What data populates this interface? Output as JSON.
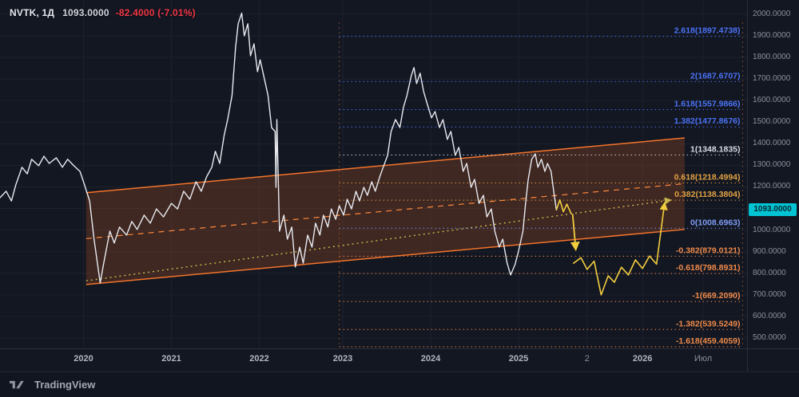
{
  "legend": {
    "symbol_text": "NVTK, 1Д",
    "price": "1093.0000",
    "change": "-82.4000 (-7.01%)"
  },
  "price_badge": {
    "text": "1093.0000",
    "price": 1093,
    "bg": "#00c3d4"
  },
  "footer": {
    "brand": "TradingView"
  },
  "colors": {
    "background": "#131722",
    "grid": "#1b212d",
    "axis_text": "#8b8f9c",
    "price_line": "#e8eaef",
    "channel_stroke": "#f4742a",
    "channel_fill": "rgba(222,98,36,0.22)",
    "channel_median": "#ff8a3c",
    "trendline": "#c9b84c",
    "projection": "#f2ce3f",
    "fib_blue": "#4a72f5",
    "fib_white": "#d8dbe3",
    "fib_amber": "#e3a243",
    "fib_zero": "#7f9cf5",
    "fib_orange": "#ef8a4a",
    "change_red": "#f23645"
  },
  "chart_data": {
    "type": "line",
    "title": "NVTK daily chart with ascending channel and Fibonacci trend extension",
    "x_domain": [
      2019.05,
      2027.55
    ],
    "y_domain": [
      452,
      2066
    ],
    "grid": true,
    "x_ticks": [
      {
        "label": "2020",
        "t": 2020.0,
        "minor": false
      },
      {
        "label": "2021",
        "t": 2021.0,
        "minor": false
      },
      {
        "label": "2022",
        "t": 2022.0,
        "minor": false
      },
      {
        "label": "2023",
        "t": 2022.95,
        "minor": false
      },
      {
        "label": "2024",
        "t": 2023.95,
        "minor": false
      },
      {
        "label": "2025",
        "t": 2024.95,
        "minor": false
      },
      {
        "label": "2",
        "t": 2025.73,
        "minor": true
      },
      {
        "label": "2026",
        "t": 2026.36,
        "minor": false
      },
      {
        "label": "Июл",
        "t": 2027.05,
        "minor": true
      }
    ],
    "y_ticks": [
      2000,
      1900,
      1800,
      1700,
      1600,
      1500,
      1400,
      1300,
      1200,
      1100,
      1000,
      900,
      800,
      700,
      600,
      500
    ],
    "series": {
      "name": "NVTK close",
      "points": [
        [
          2019.05,
          1150
        ],
        [
          2019.12,
          1180
        ],
        [
          2019.18,
          1135
        ],
        [
          2019.23,
          1210
        ],
        [
          2019.3,
          1291
        ],
        [
          2019.36,
          1261
        ],
        [
          2019.41,
          1328
        ],
        [
          2019.49,
          1298
        ],
        [
          2019.55,
          1342
        ],
        [
          2019.61,
          1309
        ],
        [
          2019.69,
          1335
        ],
        [
          2019.76,
          1291
        ],
        [
          2019.82,
          1328
        ],
        [
          2019.89,
          1298
        ],
        [
          2019.96,
          1272
        ],
        [
          2020,
          1224
        ],
        [
          2020.07,
          1135
        ],
        [
          2020.12,
          958
        ],
        [
          2020.19,
          755
        ],
        [
          2020.23,
          847
        ],
        [
          2020.3,
          995
        ],
        [
          2020.35,
          940
        ],
        [
          2020.41,
          1014
        ],
        [
          2020.49,
          977
        ],
        [
          2020.55,
          1040
        ],
        [
          2020.61,
          1003
        ],
        [
          2020.69,
          1069
        ],
        [
          2020.76,
          1032
        ],
        [
          2020.83,
          1098
        ],
        [
          2020.91,
          1061
        ],
        [
          2021,
          1124
        ],
        [
          2021.07,
          1098
        ],
        [
          2021.14,
          1180
        ],
        [
          2021.21,
          1143
        ],
        [
          2021.28,
          1224
        ],
        [
          2021.34,
          1180
        ],
        [
          2021.4,
          1246
        ],
        [
          2021.46,
          1291
        ],
        [
          2021.5,
          1365
        ],
        [
          2021.55,
          1309
        ],
        [
          2021.6,
          1438
        ],
        [
          2021.64,
          1512
        ],
        [
          2021.69,
          1623
        ],
        [
          2021.73,
          1845
        ],
        [
          2021.76,
          1956
        ],
        [
          2021.8,
          2005
        ],
        [
          2021.83,
          1900
        ],
        [
          2021.87,
          1956
        ],
        [
          2021.9,
          1808
        ],
        [
          2021.94,
          1863
        ],
        [
          2021.98,
          1734
        ],
        [
          2022.01,
          1789
        ],
        [
          2022.05,
          1716
        ],
        [
          2022.1,
          1623
        ],
        [
          2022.14,
          1475
        ],
        [
          2022.18,
          1457
        ],
        [
          2022.19,
          1198
        ],
        [
          2022.2,
          1512
        ],
        [
          2022.23,
          995
        ],
        [
          2022.28,
          1069
        ],
        [
          2022.32,
          958
        ],
        [
          2022.37,
          1014
        ],
        [
          2022.41,
          829
        ],
        [
          2022.46,
          921
        ],
        [
          2022.5,
          847
        ],
        [
          2022.55,
          977
        ],
        [
          2022.6,
          921
        ],
        [
          2022.64,
          1032
        ],
        [
          2022.69,
          977
        ],
        [
          2022.73,
          1069
        ],
        [
          2022.78,
          1014
        ],
        [
          2022.82,
          1098
        ],
        [
          2022.87,
          1050
        ],
        [
          2022.91,
          1113
        ],
        [
          2022.96,
          1069
        ],
        [
          2023,
          1143
        ],
        [
          2023.05,
          1098
        ],
        [
          2023.1,
          1180
        ],
        [
          2023.14,
          1135
        ],
        [
          2023.19,
          1198
        ],
        [
          2023.23,
          1161
        ],
        [
          2023.28,
          1224
        ],
        [
          2023.32,
          1180
        ],
        [
          2023.37,
          1246
        ],
        [
          2023.41,
          1291
        ],
        [
          2023.46,
          1346
        ],
        [
          2023.5,
          1457
        ],
        [
          2023.55,
          1512
        ],
        [
          2023.6,
          1475
        ],
        [
          2023.64,
          1568
        ],
        [
          2023.68,
          1623
        ],
        [
          2023.73,
          1716
        ],
        [
          2023.76,
          1753
        ],
        [
          2023.79,
          1679
        ],
        [
          2023.83,
          1727
        ],
        [
          2023.87,
          1642
        ],
        [
          2023.91,
          1586
        ],
        [
          2023.96,
          1520
        ],
        [
          2024,
          1549
        ],
        [
          2024.05,
          1475
        ],
        [
          2024.09,
          1512
        ],
        [
          2024.14,
          1420
        ],
        [
          2024.18,
          1457
        ],
        [
          2024.23,
          1346
        ],
        [
          2024.27,
          1383
        ],
        [
          2024.32,
          1272
        ],
        [
          2024.36,
          1309
        ],
        [
          2024.41,
          1198
        ],
        [
          2024.45,
          1235
        ],
        [
          2024.5,
          1124
        ],
        [
          2024.55,
          1161
        ],
        [
          2024.59,
          1061
        ],
        [
          2024.64,
          1098
        ],
        [
          2024.68,
          995
        ],
        [
          2024.73,
          921
        ],
        [
          2024.77,
          958
        ],
        [
          2024.82,
          847
        ],
        [
          2024.86,
          792
        ],
        [
          2024.91,
          840
        ],
        [
          2024.95,
          903
        ],
        [
          2025,
          995
        ],
        [
          2025.03,
          1124
        ],
        [
          2025.06,
          1235
        ],
        [
          2025.1,
          1328
        ],
        [
          2025.14,
          1353
        ],
        [
          2025.17,
          1291
        ],
        [
          2025.21,
          1328
        ],
        [
          2025.25,
          1272
        ],
        [
          2025.28,
          1309
        ],
        [
          2025.32,
          1272
        ],
        [
          2025.35,
          1180
        ],
        [
          2025.38,
          1093
        ]
      ]
    },
    "channel": {
      "t0": 2020.03,
      "t1": 2026.84,
      "top": [
        1173,
        1427
      ],
      "bottom": [
        748,
        1003
      ]
    },
    "trendline": {
      "from": [
        2020.03,
        765
      ],
      "to": [
        2026.67,
        1138.38
      ]
    },
    "projection": {
      "lead": [
        [
          2025.38,
          1093
        ],
        [
          2025.42,
          1140
        ],
        [
          2025.46,
          1085
        ],
        [
          2025.5,
          1120
        ],
        [
          2025.55,
          1075
        ]
      ],
      "down_arrow": [
        [
          2025.565,
          1075
        ],
        [
          2025.6,
          915
        ]
      ],
      "zigzag": [
        [
          2025.57,
          845
        ],
        [
          2025.66,
          872
        ],
        [
          2025.73,
          818
        ],
        [
          2025.81,
          856
        ],
        [
          2025.89,
          700
        ],
        [
          2025.97,
          788
        ],
        [
          2026.04,
          758
        ],
        [
          2026.12,
          828
        ],
        [
          2026.2,
          792
        ],
        [
          2026.28,
          862
        ],
        [
          2026.36,
          822
        ],
        [
          2026.44,
          880
        ],
        [
          2026.52,
          842
        ],
        [
          2026.61,
          1120
        ]
      ]
    },
    "fib": {
      "t_start": 2022.91,
      "t_end": 2027.5,
      "levels": [
        {
          "label": "2.618(1897.4738)",
          "price": 1897.4738,
          "role": "blue"
        },
        {
          "label": "2(1687.6707)",
          "price": 1687.6707,
          "role": "blue"
        },
        {
          "label": "1.618(1557.9866)",
          "price": 1557.9866,
          "role": "blue"
        },
        {
          "label": "1.382(1477.8676)",
          "price": 1477.8676,
          "role": "blue"
        },
        {
          "label": "1(1348.1835)",
          "price": 1348.1835,
          "role": "white"
        },
        {
          "label": "0.618(1218.4994)",
          "price": 1218.4994,
          "role": "amber"
        },
        {
          "label": "0.382(1138.3804)",
          "price": 1138.3804,
          "role": "amber"
        },
        {
          "label": "0(1008.6963)",
          "price": 1008.6963,
          "role": "zero"
        },
        {
          "label": "-0.382(879.0121)",
          "price": 879.0121,
          "role": "orange"
        },
        {
          "label": "-0.618(798.8931)",
          "price": 798.8931,
          "role": "orange"
        },
        {
          "label": "-1(669.2090)",
          "price": 669.209,
          "role": "orange"
        },
        {
          "label": "-1.382(539.5249)",
          "price": 539.5249,
          "role": "orange"
        },
        {
          "label": "-1.618(459.4059)",
          "price": 459.4059,
          "role": "orange"
        }
      ]
    }
  }
}
